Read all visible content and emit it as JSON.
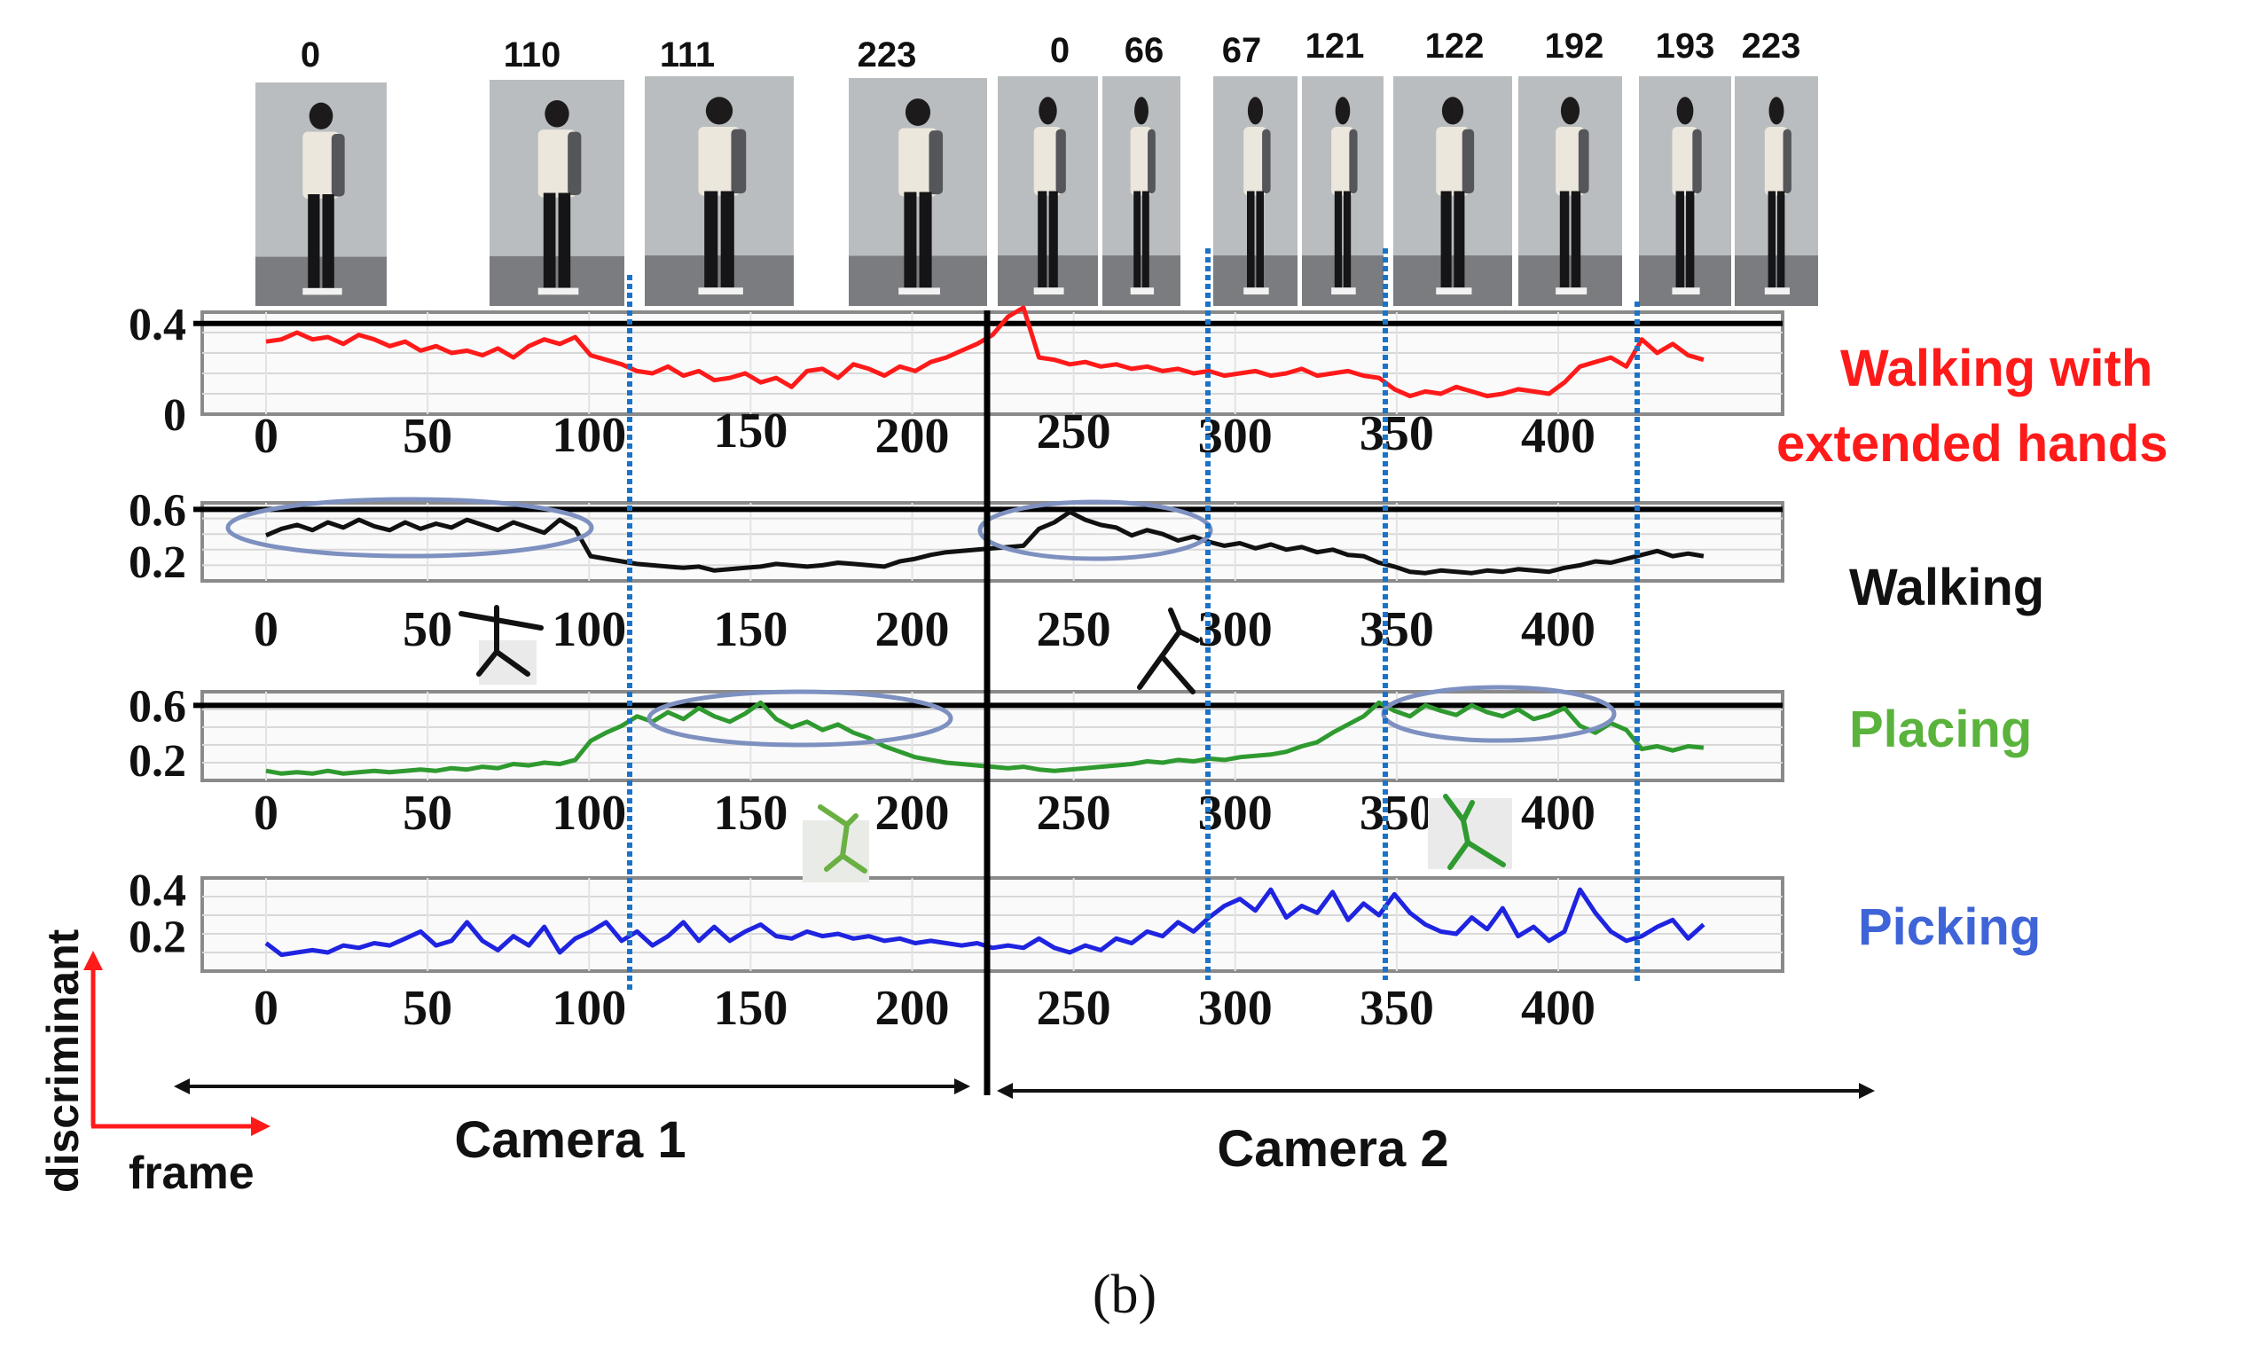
{
  "frame_labels": [
    "0",
    "110",
    "111",
    "223",
    "0",
    "66",
    "67",
    "121",
    "122",
    "192",
    "193",
    "223"
  ],
  "camera_labels": [
    "Camera 1",
    "Camera 2"
  ],
  "axis_legend": {
    "y": "discriminant",
    "x": "frame"
  },
  "caption": "(b)",
  "colors": {
    "red": "#ff1a1a",
    "black": "#111111",
    "green": "#2f9a2f",
    "blue": "#1f24e0",
    "label_green": "#5ab33c",
    "label_blue": "#3f64d8",
    "boundary": "#1a73c8",
    "ellipse": "#7d90c0"
  },
  "chart_data": [
    {
      "type": "line",
      "series": [
        {
          "name": "Walking with extended hands",
          "values": [
            0.32,
            0.33,
            0.36,
            0.33,
            0.34,
            0.31,
            0.35,
            0.33,
            0.3,
            0.32,
            0.28,
            0.3,
            0.27,
            0.28,
            0.26,
            0.29,
            0.25,
            0.3,
            0.33,
            0.31,
            0.34,
            0.26,
            0.24,
            0.22,
            0.19,
            0.18,
            0.21,
            0.17,
            0.19,
            0.15,
            0.16,
            0.18,
            0.14,
            0.16,
            0.12,
            0.19,
            0.2,
            0.16,
            0.22,
            0.2,
            0.17,
            0.21,
            0.19,
            0.23,
            0.25,
            0.28,
            0.31,
            0.35,
            0.43,
            0.47,
            0.25,
            0.24,
            0.22,
            0.23,
            0.21,
            0.22,
            0.2,
            0.21,
            0.19,
            0.2,
            0.18,
            0.19,
            0.17,
            0.18,
            0.19,
            0.17,
            0.18,
            0.2,
            0.17,
            0.18,
            0.19,
            0.17,
            0.16,
            0.11,
            0.08,
            0.1,
            0.09,
            0.12,
            0.1,
            0.08,
            0.09,
            0.11,
            0.1,
            0.09,
            0.14,
            0.21,
            0.23,
            0.25,
            0.21,
            0.33,
            0.27,
            0.31,
            0.26,
            0.24
          ]
        }
      ],
      "x_ticks": [
        "0",
        "50",
        "100",
        "150",
        "200",
        "250",
        "300",
        "350",
        "400"
      ],
      "y_ticks": [
        "0.4",
        "0"
      ],
      "ylim": [
        0,
        0.45
      ],
      "label": "Walking with extended hands"
    },
    {
      "type": "line",
      "series": [
        {
          "name": "Walking",
          "values": [
            0.4,
            0.45,
            0.48,
            0.44,
            0.5,
            0.46,
            0.52,
            0.47,
            0.44,
            0.5,
            0.45,
            0.49,
            0.46,
            0.52,
            0.48,
            0.44,
            0.5,
            0.46,
            0.42,
            0.52,
            0.45,
            0.24,
            0.22,
            0.2,
            0.18,
            0.17,
            0.16,
            0.15,
            0.16,
            0.13,
            0.14,
            0.15,
            0.16,
            0.18,
            0.17,
            0.16,
            0.17,
            0.19,
            0.18,
            0.17,
            0.16,
            0.2,
            0.22,
            0.25,
            0.27,
            0.28,
            0.29,
            0.3,
            0.31,
            0.32,
            0.45,
            0.5,
            0.58,
            0.52,
            0.48,
            0.46,
            0.4,
            0.44,
            0.41,
            0.36,
            0.39,
            0.35,
            0.32,
            0.34,
            0.3,
            0.33,
            0.29,
            0.31,
            0.27,
            0.29,
            0.25,
            0.24,
            0.19,
            0.16,
            0.12,
            0.11,
            0.13,
            0.12,
            0.11,
            0.13,
            0.12,
            0.14,
            0.13,
            0.12,
            0.15,
            0.17,
            0.2,
            0.19,
            0.22,
            0.25,
            0.28,
            0.24,
            0.26,
            0.24
          ]
        }
      ],
      "x_ticks": [
        "0",
        "50",
        "100",
        "150",
        "200",
        "250",
        "300",
        "350",
        "400"
      ],
      "y_ticks": [
        "0.6",
        "0.2"
      ],
      "ylim": [
        0.05,
        0.65
      ],
      "label": "Walking"
    },
    {
      "type": "line",
      "series": [
        {
          "name": "Placing",
          "values": [
            0.12,
            0.1,
            0.11,
            0.1,
            0.12,
            0.1,
            0.11,
            0.12,
            0.11,
            0.12,
            0.13,
            0.12,
            0.14,
            0.13,
            0.15,
            0.14,
            0.17,
            0.16,
            0.18,
            0.17,
            0.2,
            0.34,
            0.4,
            0.45,
            0.52,
            0.48,
            0.55,
            0.5,
            0.58,
            0.52,
            0.48,
            0.54,
            0.62,
            0.5,
            0.44,
            0.48,
            0.42,
            0.46,
            0.4,
            0.36,
            0.3,
            0.26,
            0.22,
            0.2,
            0.18,
            0.17,
            0.16,
            0.15,
            0.14,
            0.15,
            0.13,
            0.12,
            0.13,
            0.14,
            0.15,
            0.16,
            0.17,
            0.19,
            0.18,
            0.2,
            0.19,
            0.21,
            0.2,
            0.22,
            0.23,
            0.24,
            0.26,
            0.3,
            0.33,
            0.4,
            0.46,
            0.52,
            0.62,
            0.56,
            0.52,
            0.6,
            0.56,
            0.53,
            0.6,
            0.55,
            0.52,
            0.57,
            0.5,
            0.53,
            0.58,
            0.45,
            0.4,
            0.47,
            0.42,
            0.28,
            0.3,
            0.27,
            0.3,
            0.29
          ]
        }
      ],
      "x_ticks": [
        "0",
        "50",
        "100",
        "150",
        "200",
        "250",
        "300",
        "350",
        "400"
      ],
      "y_ticks": [
        "0.6",
        "0.2"
      ],
      "ylim": [
        0.05,
        0.7
      ],
      "label": "Placing"
    },
    {
      "type": "line",
      "series": [
        {
          "name": "Picking",
          "values": [
            0.17,
            0.12,
            0.13,
            0.14,
            0.13,
            0.16,
            0.15,
            0.17,
            0.16,
            0.19,
            0.22,
            0.16,
            0.18,
            0.26,
            0.18,
            0.14,
            0.2,
            0.16,
            0.24,
            0.13,
            0.19,
            0.22,
            0.26,
            0.18,
            0.22,
            0.16,
            0.2,
            0.26,
            0.18,
            0.24,
            0.18,
            0.22,
            0.25,
            0.2,
            0.19,
            0.22,
            0.2,
            0.21,
            0.19,
            0.2,
            0.18,
            0.19,
            0.17,
            0.18,
            0.17,
            0.16,
            0.17,
            0.15,
            0.16,
            0.15,
            0.19,
            0.15,
            0.13,
            0.16,
            0.14,
            0.19,
            0.17,
            0.22,
            0.2,
            0.26,
            0.22,
            0.28,
            0.33,
            0.36,
            0.31,
            0.4,
            0.28,
            0.33,
            0.3,
            0.39,
            0.27,
            0.34,
            0.29,
            0.38,
            0.3,
            0.25,
            0.22,
            0.21,
            0.28,
            0.23,
            0.32,
            0.2,
            0.24,
            0.18,
            0.22,
            0.4,
            0.3,
            0.22,
            0.18,
            0.2,
            0.24,
            0.27,
            0.19,
            0.25
          ]
        }
      ],
      "x_ticks": [
        "0",
        "50",
        "100",
        "150",
        "200",
        "250",
        "300",
        "350",
        "400"
      ],
      "y_ticks": [
        "0.4",
        "0.2"
      ],
      "ylim": [
        0.05,
        0.45
      ],
      "label": "Picking"
    }
  ]
}
